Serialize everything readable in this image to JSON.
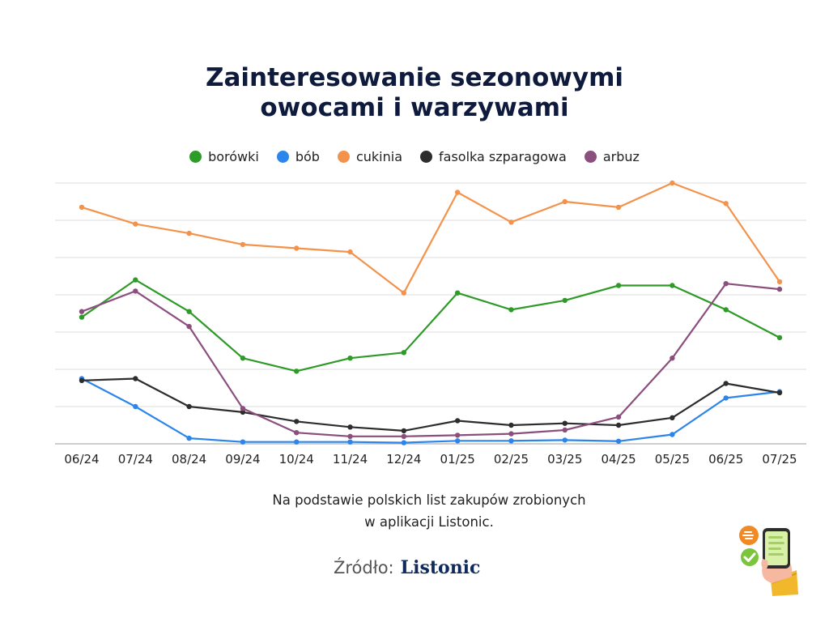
{
  "chart_data": {
    "type": "line",
    "title_lines": [
      "Zainteresowanie sezonowymi",
      "owocami i warzywami"
    ],
    "categories": [
      "06/24",
      "07/24",
      "08/24",
      "09/24",
      "10/24",
      "11/24",
      "12/24",
      "01/25",
      "02/25",
      "03/25",
      "04/25",
      "05/25",
      "06/25",
      "07/25"
    ],
    "series": [
      {
        "name": "borówki",
        "color": "#2e9a27",
        "values": [
          34,
          44,
          35.5,
          23,
          19.5,
          23,
          24.5,
          40.5,
          36,
          38.5,
          42.5,
          42.5,
          36,
          28.5
        ]
      },
      {
        "name": "bób",
        "color": "#2b85ea",
        "values": [
          17.5,
          10,
          1.5,
          0.5,
          0.5,
          0.5,
          0.3,
          0.8,
          0.8,
          1,
          0.7,
          2.5,
          12.3,
          14
        ]
      },
      {
        "name": "cukinia",
        "color": "#f3934b",
        "values": [
          63.5,
          59,
          56.5,
          53.5,
          52.5,
          51.5,
          40.5,
          67.5,
          59.5,
          65,
          63.5,
          70,
          64.5,
          43.5
        ]
      },
      {
        "name": "fasolka szparagowa",
        "color": "#2d2d2d",
        "values": [
          17,
          17.5,
          10,
          8.5,
          6,
          4.5,
          3.5,
          6.2,
          5,
          5.5,
          5,
          7,
          16.2,
          13.7
        ]
      },
      {
        "name": "arbuz",
        "color": "#8b4f7e",
        "values": [
          35.5,
          41,
          31.5,
          9.5,
          3,
          2,
          2,
          2.3,
          2.7,
          3.7,
          7.2,
          23,
          43,
          41.5
        ]
      }
    ],
    "ylim": [
      0,
      70
    ],
    "grid": true,
    "legend_position": "top-center"
  },
  "caption_lines": [
    "Na podstawie polskich list zakupów zrobionych",
    "w aplikacji Listonic."
  ],
  "source": {
    "label": "Źródło:",
    "brand": "Listonic"
  }
}
